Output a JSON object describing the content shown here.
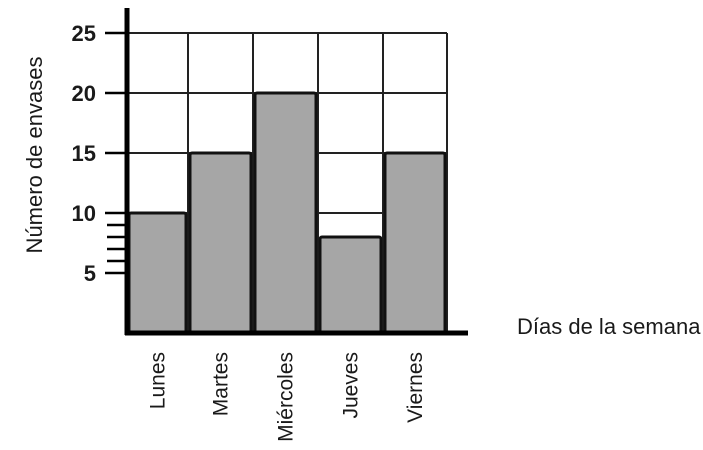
{
  "chart_data": {
    "type": "bar",
    "categories": [
      "Lunes",
      "Martes",
      "Miércoles",
      "Jueves",
      "Viernes"
    ],
    "values": [
      10,
      15,
      20,
      8,
      15
    ],
    "xlabel": "Días de la semana",
    "ylabel": "Número de envases",
    "ylim": [
      0,
      25
    ],
    "yticks": [
      5,
      10,
      15,
      20,
      25
    ],
    "ytick_labels": [
      "5",
      "10",
      "15",
      "20",
      "25"
    ],
    "grid": true,
    "colors": {
      "bar_fill": "#a6a6a6",
      "bar_stroke": "#111111",
      "grid": "#222222",
      "axis": "#000000"
    }
  }
}
